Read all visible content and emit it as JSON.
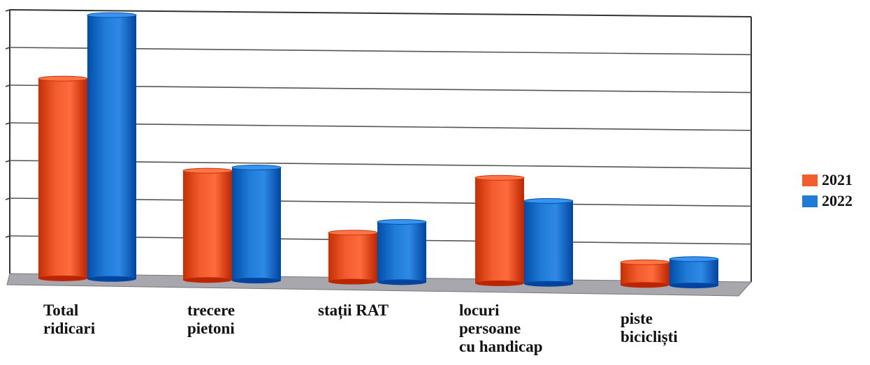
{
  "chart_data": {
    "type": "bar",
    "categories": [
      "Total\nridicari",
      "trecere\npietoni",
      "stații RAT",
      "locuri\npersoane\ncu handicap",
      "piste\nbicicliști"
    ],
    "series": [
      {
        "name": "2021",
        "color": "#f25c2e",
        "values": [
          5.3,
          2.9,
          1.3,
          2.8,
          0.6
        ]
      },
      {
        "name": "2022",
        "color": "#1f7bd6",
        "values": [
          7.0,
          3.0,
          1.6,
          2.2,
          0.7
        ]
      }
    ],
    "ylim": [
      0,
      7
    ],
    "grid": true,
    "legend": "right",
    "title": "",
    "xlabel": "",
    "ylabel": ""
  }
}
